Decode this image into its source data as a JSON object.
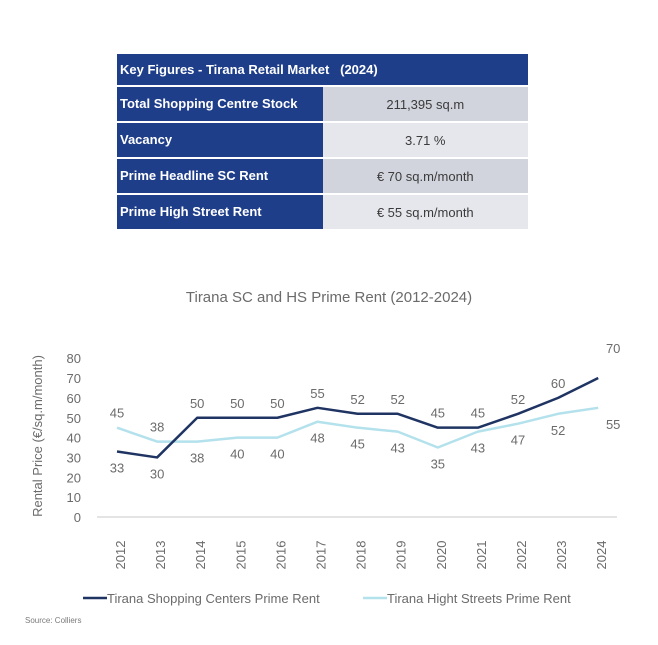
{
  "key_figures": {
    "title": "Key Figures - Tirana Retail Market",
    "year": "(2024)",
    "rows": [
      {
        "label": "Total Shopping Centre Stock",
        "value": "211,395 sq.m"
      },
      {
        "label": "Vacancy",
        "value": "3.71 %"
      },
      {
        "label": "Prime Headline SC Rent",
        "value": "€ 70 sq.m/month"
      },
      {
        "label": "Prime High Street Rent",
        "value": "€ 55 sq.m/month"
      }
    ]
  },
  "chart_data": {
    "type": "line",
    "title": "Tirana SC and HS Prime Rent (2012-2024)",
    "ylabel": "Rental Price (€/sq.m/month)",
    "xlabel": "",
    "x": [
      "2012",
      "2013",
      "2014",
      "2015",
      "2016",
      "2017",
      "2018",
      "2019",
      "2020",
      "2021",
      "2022",
      "2023",
      "2024"
    ],
    "ylim": [
      0,
      80
    ],
    "yticks": [
      0,
      10,
      20,
      30,
      40,
      50,
      60,
      70,
      80
    ],
    "grid": false,
    "legend_position": "bottom",
    "series": [
      {
        "name": "Tirana Shopping Centers Prime Rent",
        "color": "#1f3462",
        "values": [
          33,
          30,
          50,
          50,
          50,
          55,
          52,
          52,
          45,
          45,
          52,
          60,
          70
        ],
        "label_positions": [
          "below",
          "below",
          "above",
          "above",
          "above",
          "above",
          "above",
          "above",
          "above",
          "above",
          "above",
          "above",
          "above"
        ]
      },
      {
        "name": "Tirana Hight Streets Prime Rent",
        "color": "#b3e1ec",
        "values": [
          45,
          38,
          38,
          40,
          40,
          48,
          45,
          43,
          35,
          43,
          47,
          52,
          55
        ],
        "label_positions": [
          "above",
          "above",
          "below",
          "below",
          "below",
          "below",
          "below",
          "below",
          "below",
          "below",
          "below",
          "below",
          "below"
        ]
      }
    ]
  },
  "source": "Source: Colliers"
}
